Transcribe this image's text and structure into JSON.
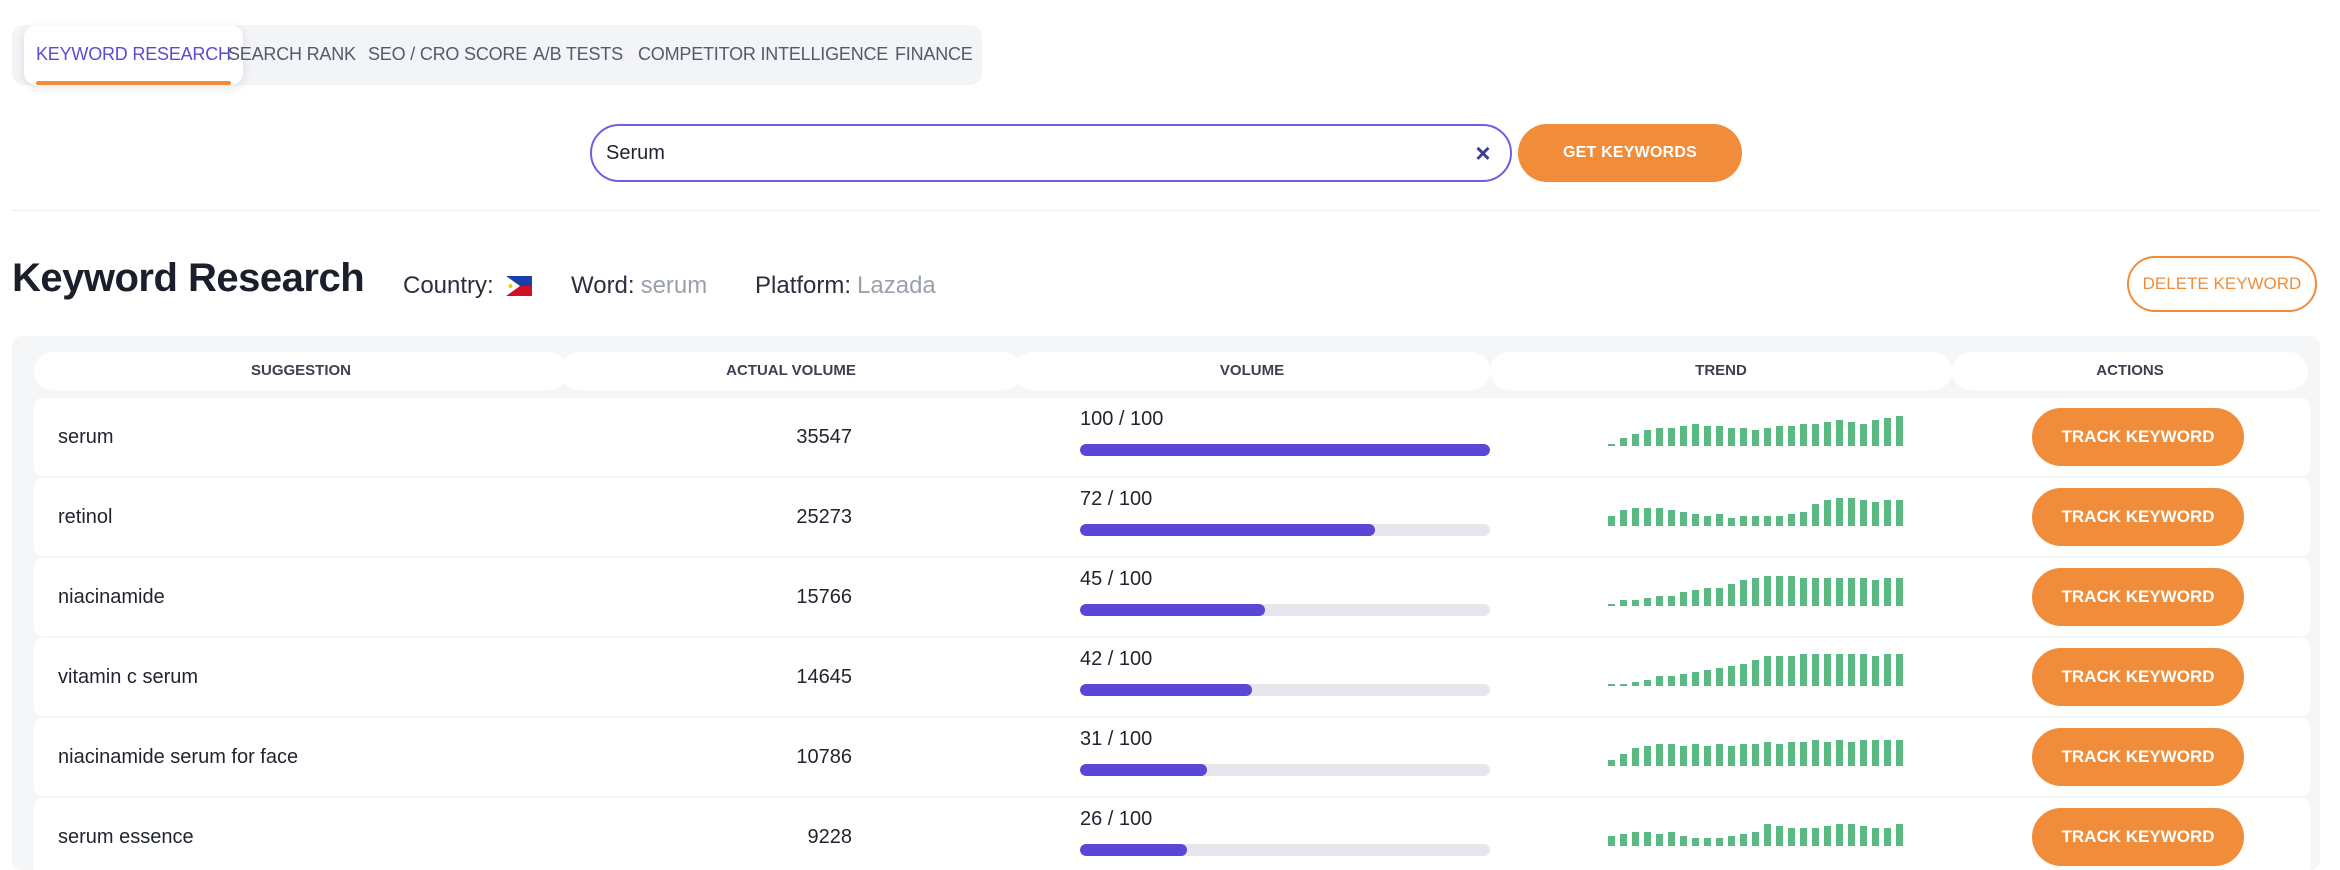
{
  "tabs": [
    {
      "label": "KEYWORD RESEARCH",
      "active": true
    },
    {
      "label": "SEARCH RANK",
      "active": false
    },
    {
      "label": "SEO / CRO SCORE",
      "active": false
    },
    {
      "label": "A/B TESTS",
      "active": false
    },
    {
      "label": "COMPETITOR INTELLIGENCE",
      "active": false
    },
    {
      "label": "FINANCE",
      "active": false
    }
  ],
  "search": {
    "value": "Serum",
    "clear_icon": "close-icon",
    "button_label": "GET KEYWORDS"
  },
  "header": {
    "title": "Keyword Research",
    "country_label": "Country:",
    "country_flag": "philippines-flag-icon",
    "word_label": "Word:",
    "word_value": "serum",
    "platform_label": "Platform:",
    "platform_value": "Lazada",
    "delete_label": "DELETE KEYWORD"
  },
  "table": {
    "headers": [
      "SUGGESTION",
      "ACTUAL VOLUME",
      "VOLUME",
      "TREND",
      "ACTIONS"
    ],
    "action_label": "TRACK KEYWORD",
    "rows": [
      {
        "suggestion": "serum",
        "actual_volume": "35547",
        "volume_label": "100 / 100",
        "volume": 100,
        "trend": [
          1,
          4,
          6,
          8,
          9,
          9,
          10,
          11,
          10,
          10,
          9,
          9,
          8,
          9,
          10,
          10,
          11,
          11,
          12,
          13,
          12,
          11,
          13,
          14,
          15
        ]
      },
      {
        "suggestion": "retinol",
        "actual_volume": "25273",
        "volume_label": "72 / 100",
        "volume": 72,
        "trend": [
          5,
          8,
          9,
          9,
          9,
          8,
          7,
          6,
          5,
          6,
          4,
          5,
          5,
          5,
          5,
          6,
          7,
          11,
          13,
          14,
          14,
          13,
          12,
          13,
          13
        ]
      },
      {
        "suggestion": "niacinamide",
        "actual_volume": "15766",
        "volume_label": "45 / 100",
        "volume": 45,
        "trend": [
          1,
          3,
          3,
          4,
          5,
          5,
          7,
          8,
          9,
          9,
          11,
          13,
          14,
          15,
          15,
          15,
          14,
          14,
          14,
          14,
          14,
          14,
          13,
          14,
          14
        ]
      },
      {
        "suggestion": "vitamin c serum",
        "actual_volume": "14645",
        "volume_label": "42 / 100",
        "volume": 42,
        "trend": [
          1,
          1,
          2,
          3,
          5,
          5,
          6,
          7,
          8,
          9,
          10,
          11,
          13,
          15,
          15,
          15,
          16,
          16,
          16,
          16,
          16,
          16,
          15,
          16,
          16
        ]
      },
      {
        "suggestion": "niacinamide serum for face",
        "actual_volume": "10786",
        "volume_label": "31 / 100",
        "volume": 31,
        "trend": [
          3,
          6,
          9,
          10,
          11,
          11,
          10,
          11,
          10,
          11,
          10,
          11,
          11,
          12,
          11,
          12,
          12,
          13,
          12,
          13,
          12,
          13,
          13,
          13,
          13
        ]
      },
      {
        "suggestion": "serum essence",
        "actual_volume": "9228",
        "volume_label": "26 / 100",
        "volume": 26,
        "trend": [
          5,
          6,
          7,
          7,
          6,
          7,
          5,
          4,
          4,
          4,
          5,
          6,
          7,
          11,
          10,
          9,
          9,
          9,
          10,
          11,
          11,
          10,
          9,
          9,
          11
        ]
      }
    ]
  },
  "colors": {
    "accent": "#f08c3a",
    "primary": "#5a47d6",
    "trend": "#5ab883"
  }
}
